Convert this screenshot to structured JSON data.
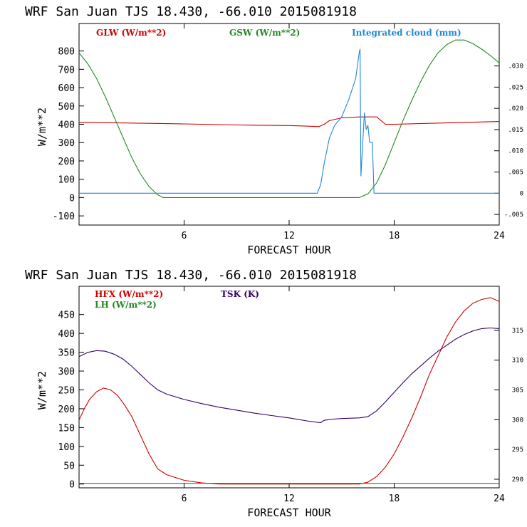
{
  "charts": [
    {
      "title": "WRF  San Juan TJS  18.430, -66.010  2015081918",
      "xlabel": "FORECAST HOUR",
      "ylabel": "W/m**2"
    },
    {
      "title": "WRF  San Juan TJS  18.430, -66.010  2015081918",
      "xlabel": "FORECAST HOUR",
      "ylabel": "W/m**2"
    }
  ],
  "chart_data": [
    {
      "type": "line",
      "title": "WRF  San Juan TJS  18.430, -66.010  2015081918",
      "xlabel": "FORECAST HOUR",
      "ylabel": "W/m**2",
      "xlim": [
        0,
        24
      ],
      "ylim": [
        -150,
        950
      ],
      "x_ticks": [
        6,
        12,
        18,
        24
      ],
      "x_tick_labels": [
        "6",
        "12",
        "18",
        "24"
      ],
      "y_ticks": [
        -100,
        0,
        100,
        200,
        300,
        400,
        500,
        600,
        700,
        800
      ],
      "y_tick_labels": [
        "-100",
        "0",
        "100",
        "200",
        "300",
        "400",
        "500",
        "600",
        "700",
        "800"
      ],
      "y2lim": [
        -0.0075,
        0.04
      ],
      "y2_ticks": [
        -0.005,
        0,
        0.005,
        0.01,
        0.015,
        0.02,
        0.025,
        0.03
      ],
      "y2_tick_labels": [
        "-.005",
        "0",
        ".005",
        ".010",
        ".015",
        ".020",
        ".025",
        ".030"
      ],
      "series": [
        {
          "name": "GLW (W/m**2)",
          "color": "#cc0000",
          "axis": "left",
          "x": [
            0,
            2,
            4,
            6,
            8,
            10,
            12,
            13,
            13.7,
            14,
            14.3,
            15,
            16,
            16.2,
            16.5,
            17,
            17.5,
            18,
            20,
            22,
            24
          ],
          "y": [
            410,
            408,
            405,
            402,
            398,
            395,
            393,
            390,
            387,
            400,
            420,
            435,
            440,
            440,
            440,
            440,
            400,
            400,
            405,
            410,
            415
          ]
        },
        {
          "name": "GSW (W/m**2)",
          "color": "#228822",
          "axis": "left",
          "x": [
            0,
            0.5,
            1,
            1.5,
            2,
            2.5,
            3,
            3.5,
            4,
            4.5,
            4.8,
            16,
            16.5,
            17,
            17.5,
            18,
            18.5,
            19,
            19.5,
            20,
            20.5,
            21,
            21.5,
            22,
            22.5,
            23,
            23.5,
            24
          ],
          "y": [
            790,
            730,
            650,
            550,
            440,
            330,
            220,
            130,
            60,
            15,
            0,
            0,
            20,
            80,
            180,
            300,
            420,
            530,
            630,
            720,
            790,
            835,
            860,
            860,
            840,
            810,
            775,
            735
          ]
        },
        {
          "name": "Integrated cloud (mm)",
          "color": "#1e88d8",
          "axis": "right",
          "x": [
            0,
            13.6,
            13.8,
            14,
            14.3,
            14.6,
            15,
            15.4,
            15.8,
            16,
            16.05,
            16.1,
            16.3,
            16.4,
            16.5,
            16.6,
            16.75,
            16.85,
            24
          ],
          "y": [
            0,
            0,
            0.002,
            0.007,
            0.013,
            0.016,
            0.018,
            0.022,
            0.027,
            0.033,
            0.034,
            0.004,
            0.019,
            0.015,
            0.016,
            0.012,
            0.012,
            0,
            0
          ]
        }
      ],
      "legend_placement": "top"
    },
    {
      "type": "line",
      "title": "WRF  San Juan TJS  18.430, -66.010  2015081918",
      "xlabel": "FORECAST HOUR",
      "ylabel": "W/m**2",
      "xlim": [
        0,
        24
      ],
      "ylim": [
        -10,
        525
      ],
      "x_ticks": [
        6,
        12,
        18,
        24
      ],
      "x_tick_labels": [
        "6",
        "12",
        "18",
        "24"
      ],
      "y_ticks": [
        0,
        50,
        100,
        150,
        200,
        250,
        300,
        350,
        400,
        450
      ],
      "y_tick_labels": [
        "0",
        "50",
        "100",
        "150",
        "200",
        "250",
        "300",
        "350",
        "400",
        "450"
      ],
      "y2lim": [
        288.56,
        322.4
      ],
      "y2_ticks": [
        290,
        295,
        300,
        305,
        310,
        315
      ],
      "y2_tick_labels": [
        "290",
        "295",
        "300",
        "305",
        "310",
        "315"
      ],
      "series": [
        {
          "name": "HFX (W/m**2)",
          "color": "#cc0000",
          "axis": "left",
          "x": [
            0,
            0.3,
            0.6,
            1,
            1.4,
            1.8,
            2.2,
            2.6,
            3,
            3.5,
            4,
            4.5,
            5,
            6,
            7,
            8,
            12,
            14,
            16,
            16.5,
            17,
            17.5,
            18,
            18.5,
            19,
            19.5,
            20,
            20.5,
            21,
            21.5,
            22,
            22.5,
            23,
            23.5,
            24
          ],
          "y": [
            170,
            200,
            225,
            245,
            255,
            250,
            235,
            210,
            180,
            130,
            80,
            40,
            25,
            10,
            3,
            0,
            0,
            0,
            0,
            5,
            20,
            45,
            80,
            125,
            175,
            230,
            290,
            340,
            390,
            430,
            460,
            480,
            490,
            495,
            485
          ],
          "note": ""
        },
        {
          "name": "LH (W/m**2)",
          "color": "#228822",
          "axis": "left",
          "x": [
            0,
            24
          ],
          "y": [
            2,
            2
          ]
        },
        {
          "name": "TSK (K)",
          "color": "#330066",
          "axis": "right",
          "x": [
            0,
            0.5,
            1,
            1.5,
            2,
            2.5,
            3,
            3.5,
            4,
            4.5,
            5,
            6,
            7,
            8,
            9,
            10,
            11,
            12,
            13,
            13.8,
            14,
            14.5,
            15,
            16,
            16.5,
            17,
            17.5,
            18,
            18.5,
            19,
            19.5,
            20,
            20.5,
            21,
            21.5,
            22,
            22.5,
            23,
            23.5,
            24
          ],
          "y": [
            310.6,
            311.3,
            311.6,
            311.5,
            311.0,
            310.2,
            309.0,
            307.6,
            306.2,
            305.0,
            304.3,
            303.4,
            302.7,
            302.1,
            301.6,
            301.1,
            300.7,
            300.3,
            299.8,
            299.5,
            299.9,
            300.1,
            300.2,
            300.3,
            300.5,
            301.5,
            303.0,
            304.6,
            306.2,
            307.7,
            309.0,
            310.3,
            311.5,
            312.5,
            313.5,
            314.3,
            314.9,
            315.3,
            315.4,
            315.3
          ]
        }
      ],
      "legend_placement": "top-left"
    }
  ]
}
